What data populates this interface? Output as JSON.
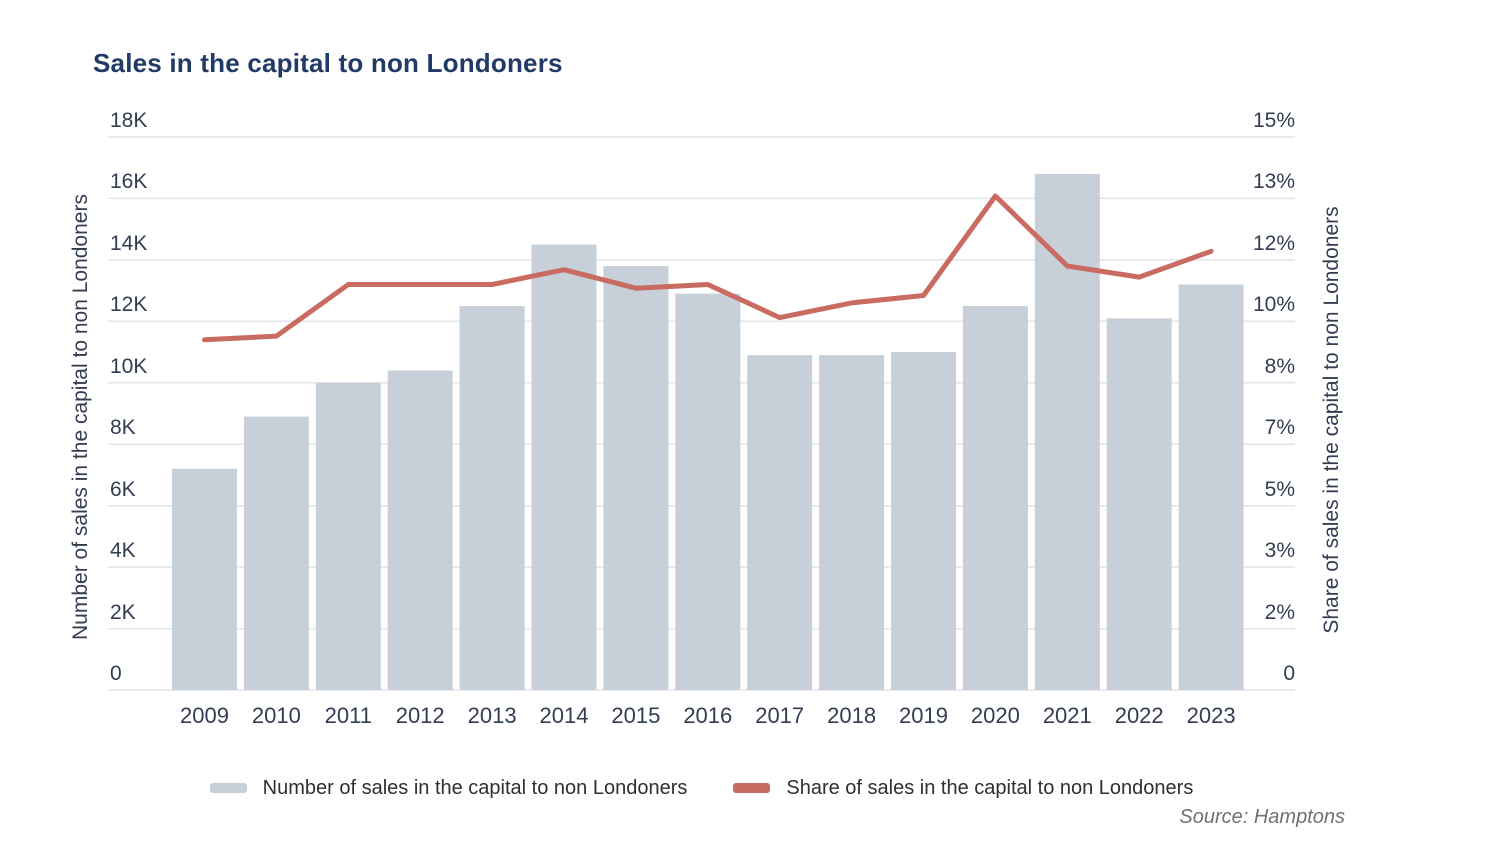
{
  "title": "Sales in the capital to non Londoners",
  "source": "Source: Hamptons",
  "colors": {
    "bar": "#c7cfd9",
    "line": "#c96b60",
    "title_text": "#213a66",
    "axis_text": "#333d52",
    "grid": "#e1e4e8",
    "legend_text": "#2f2f2f",
    "source_text": "#717171"
  },
  "chart_data": {
    "type": "bar+line",
    "title": "Sales in the capital to non Londoners",
    "categories": [
      "2009",
      "2010",
      "2011",
      "2012",
      "2013",
      "2014",
      "2015",
      "2016",
      "2017",
      "2018",
      "2019",
      "2020",
      "2021",
      "2022",
      "2023"
    ],
    "series": [
      {
        "name": "Number of sales in the capital to non Londoners",
        "type": "bar",
        "axis": "left",
        "values": [
          7200,
          8900,
          10000,
          10400,
          12500,
          14500,
          13800,
          12900,
          10900,
          10900,
          11000,
          12500,
          16800,
          12100,
          13200
        ]
      },
      {
        "name": "Share of sales in the capital to non Londoners",
        "type": "line",
        "axis": "right",
        "values": [
          9.5,
          9.6,
          11.0,
          11.0,
          11.0,
          11.4,
          10.9,
          11.0,
          10.1,
          10.5,
          10.7,
          13.4,
          11.5,
          11.2,
          11.9
        ]
      }
    ],
    "left_axis": {
      "label": "Number of sales in the capital to non Londoners",
      "min": 0,
      "max": 18000,
      "ticks": [
        "0",
        "2K",
        "4K",
        "6K",
        "8K",
        "10K",
        "12K",
        "14K",
        "16K",
        "18K"
      ]
    },
    "right_axis": {
      "label": "Share of sales in the capital to non Londoners",
      "min": 0,
      "max": 15,
      "ticks": [
        "0",
        "2%",
        "3%",
        "5%",
        "7%",
        "8%",
        "10%",
        "12%",
        "13%",
        "15%"
      ]
    },
    "grid": true,
    "legend_position": "bottom"
  }
}
